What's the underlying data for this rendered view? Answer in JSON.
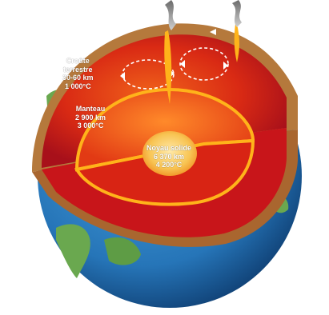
{
  "labels": {
    "crust": {
      "name1": "Croûte",
      "name2": "terrestre",
      "thickness": "30-60 km",
      "temperature": "1 000°C"
    },
    "mantle": {
      "name": "Manteau",
      "thickness": "2 900 km",
      "temperature": "3 000°C"
    },
    "core": {
      "name": "Noyau solide",
      "radius": "6 370 km",
      "temperature": "4 200°C"
    }
  },
  "colors": {
    "ocean": "#2e86c8",
    "land": "#6aa84f",
    "crust": "#b5793c",
    "mantle_outer": "#c8151a",
    "mantle_inner": "#e84a12",
    "core": "#f7c85a",
    "ring": "#ffb31a"
  }
}
